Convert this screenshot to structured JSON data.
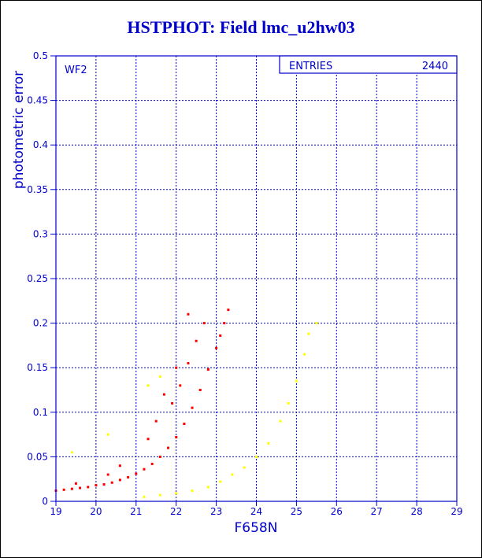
{
  "colors": {
    "axis": "#0000cc",
    "grid": "#0000cc",
    "title": "#0000cc",
    "wf2_points": "#ff0000",
    "other_points": "#ffff00"
  },
  "chart_data": {
    "type": "scatter",
    "title": "HSTPHOT: Field lmc_u2hw03",
    "xlabel": "F658N",
    "ylabel": "photometric error",
    "xlim": [
      19,
      29
    ],
    "ylim": [
      0,
      0.5
    ],
    "xticks": [
      "19",
      "20",
      "21",
      "22",
      "23",
      "24",
      "25",
      "26",
      "27",
      "28",
      "29"
    ],
    "yticks": [
      "0",
      "0.05",
      "0.1",
      "0.15",
      "0.2",
      "0.25",
      "0.3",
      "0.35",
      "0.4",
      "0.45",
      "0.5"
    ],
    "grid": true,
    "panel_label": "WF2",
    "stats_box": {
      "label": "ENTRIES",
      "value": "2440",
      "placement": "top-right"
    },
    "series": [
      {
        "color": "#ff0000",
        "points": [
          [
            19.0,
            0.012
          ],
          [
            19.2,
            0.013
          ],
          [
            19.4,
            0.014
          ],
          [
            19.6,
            0.015
          ],
          [
            19.8,
            0.016
          ],
          [
            20.0,
            0.018
          ],
          [
            20.2,
            0.019
          ],
          [
            20.4,
            0.021
          ],
          [
            20.6,
            0.024
          ],
          [
            20.8,
            0.027
          ],
          [
            21.0,
            0.031
          ],
          [
            21.2,
            0.036
          ],
          [
            21.4,
            0.042
          ],
          [
            21.6,
            0.05
          ],
          [
            21.8,
            0.06
          ],
          [
            22.0,
            0.072
          ],
          [
            22.2,
            0.087
          ],
          [
            22.4,
            0.105
          ],
          [
            22.6,
            0.125
          ],
          [
            22.8,
            0.148
          ],
          [
            23.0,
            0.172
          ],
          [
            23.1,
            0.186
          ],
          [
            23.2,
            0.2
          ],
          [
            23.3,
            0.215
          ],
          [
            21.9,
            0.11
          ],
          [
            22.1,
            0.13
          ],
          [
            22.3,
            0.155
          ],
          [
            22.5,
            0.18
          ],
          [
            22.7,
            0.2
          ],
          [
            21.3,
            0.07
          ],
          [
            21.5,
            0.09
          ],
          [
            22.0,
            0.15
          ],
          [
            22.3,
            0.21
          ],
          [
            21.7,
            0.12
          ],
          [
            20.3,
            0.03
          ],
          [
            20.6,
            0.04
          ],
          [
            19.5,
            0.02
          ]
        ]
      },
      {
        "color": "#ffff00",
        "points": [
          [
            21.2,
            0.005
          ],
          [
            21.6,
            0.007
          ],
          [
            22.0,
            0.009
          ],
          [
            22.4,
            0.012
          ],
          [
            22.8,
            0.016
          ],
          [
            23.1,
            0.022
          ],
          [
            23.4,
            0.03
          ],
          [
            23.7,
            0.038
          ],
          [
            24.0,
            0.05
          ],
          [
            24.3,
            0.065
          ],
          [
            24.6,
            0.09
          ],
          [
            24.8,
            0.11
          ],
          [
            25.0,
            0.135
          ],
          [
            25.2,
            0.165
          ],
          [
            25.3,
            0.188
          ],
          [
            25.5,
            0.2
          ],
          [
            21.6,
            0.14
          ],
          [
            20.3,
            0.075
          ],
          [
            19.4,
            0.055
          ],
          [
            21.3,
            0.13
          ]
        ]
      }
    ]
  }
}
